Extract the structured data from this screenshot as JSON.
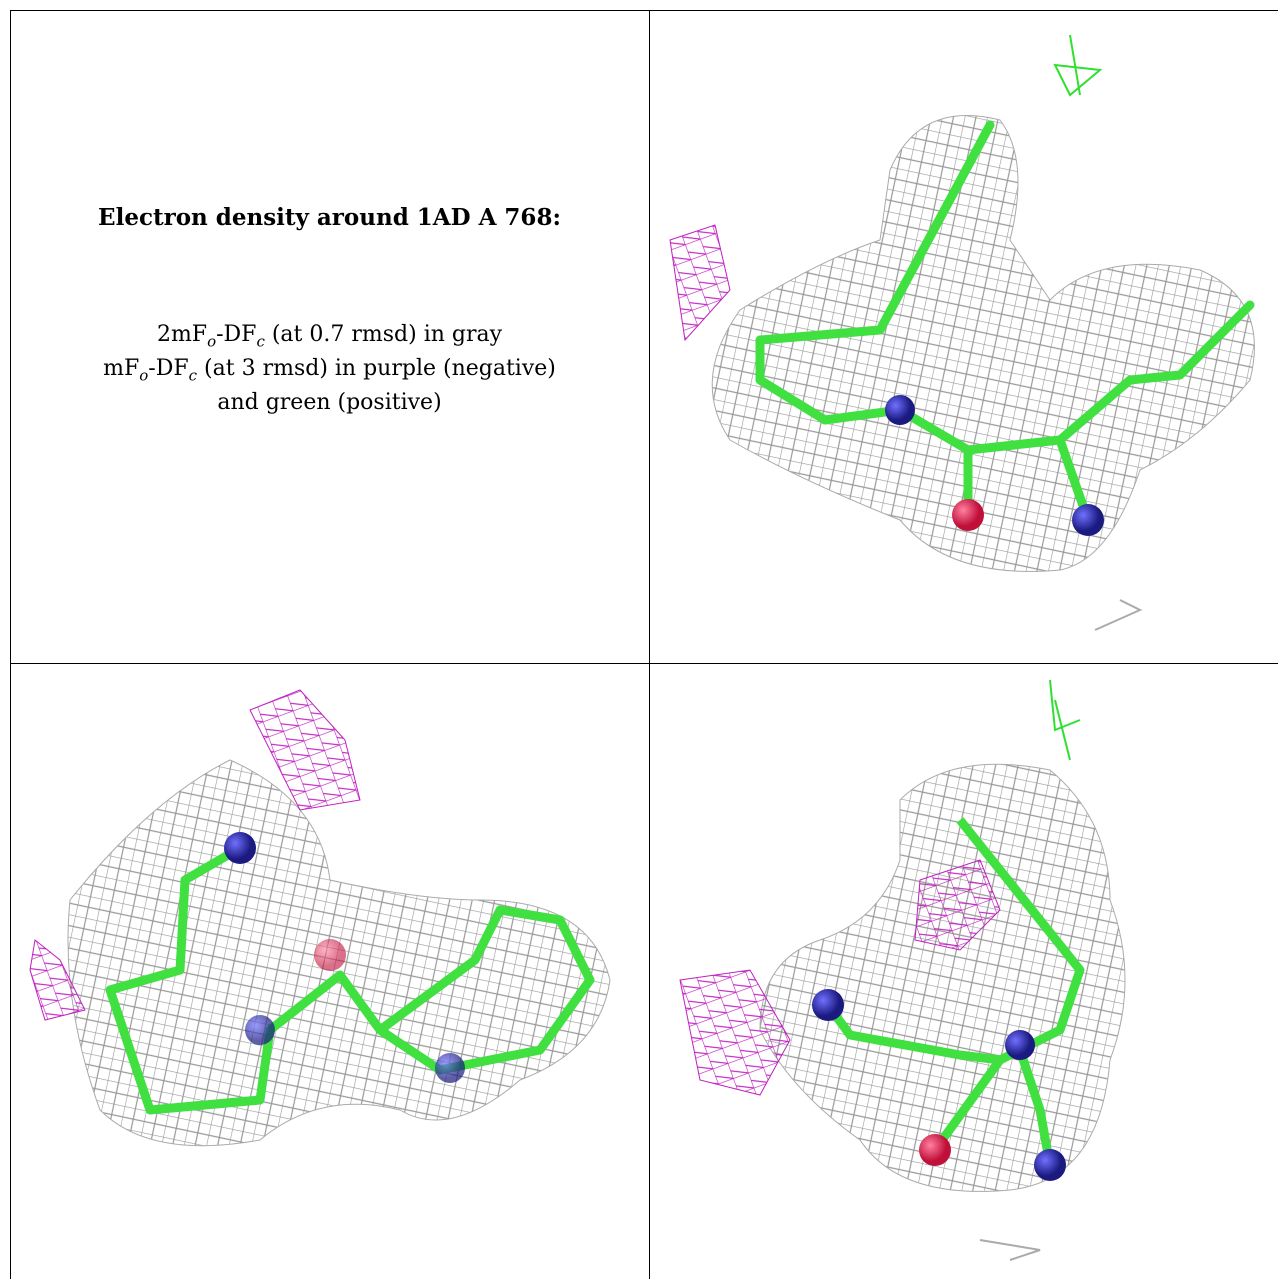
{
  "caption": {
    "title": "Electron density around 1AD A 768:",
    "lines": [
      [
        "2mF",
        "o",
        "-DF",
        "c",
        " (at 0.7 rmsd) in gray"
      ],
      [
        "mF",
        "o",
        "-DF",
        "c",
        " (at 3 rmsd) in purple (negative)"
      ],
      [
        "and green (positive)"
      ]
    ]
  }
}
